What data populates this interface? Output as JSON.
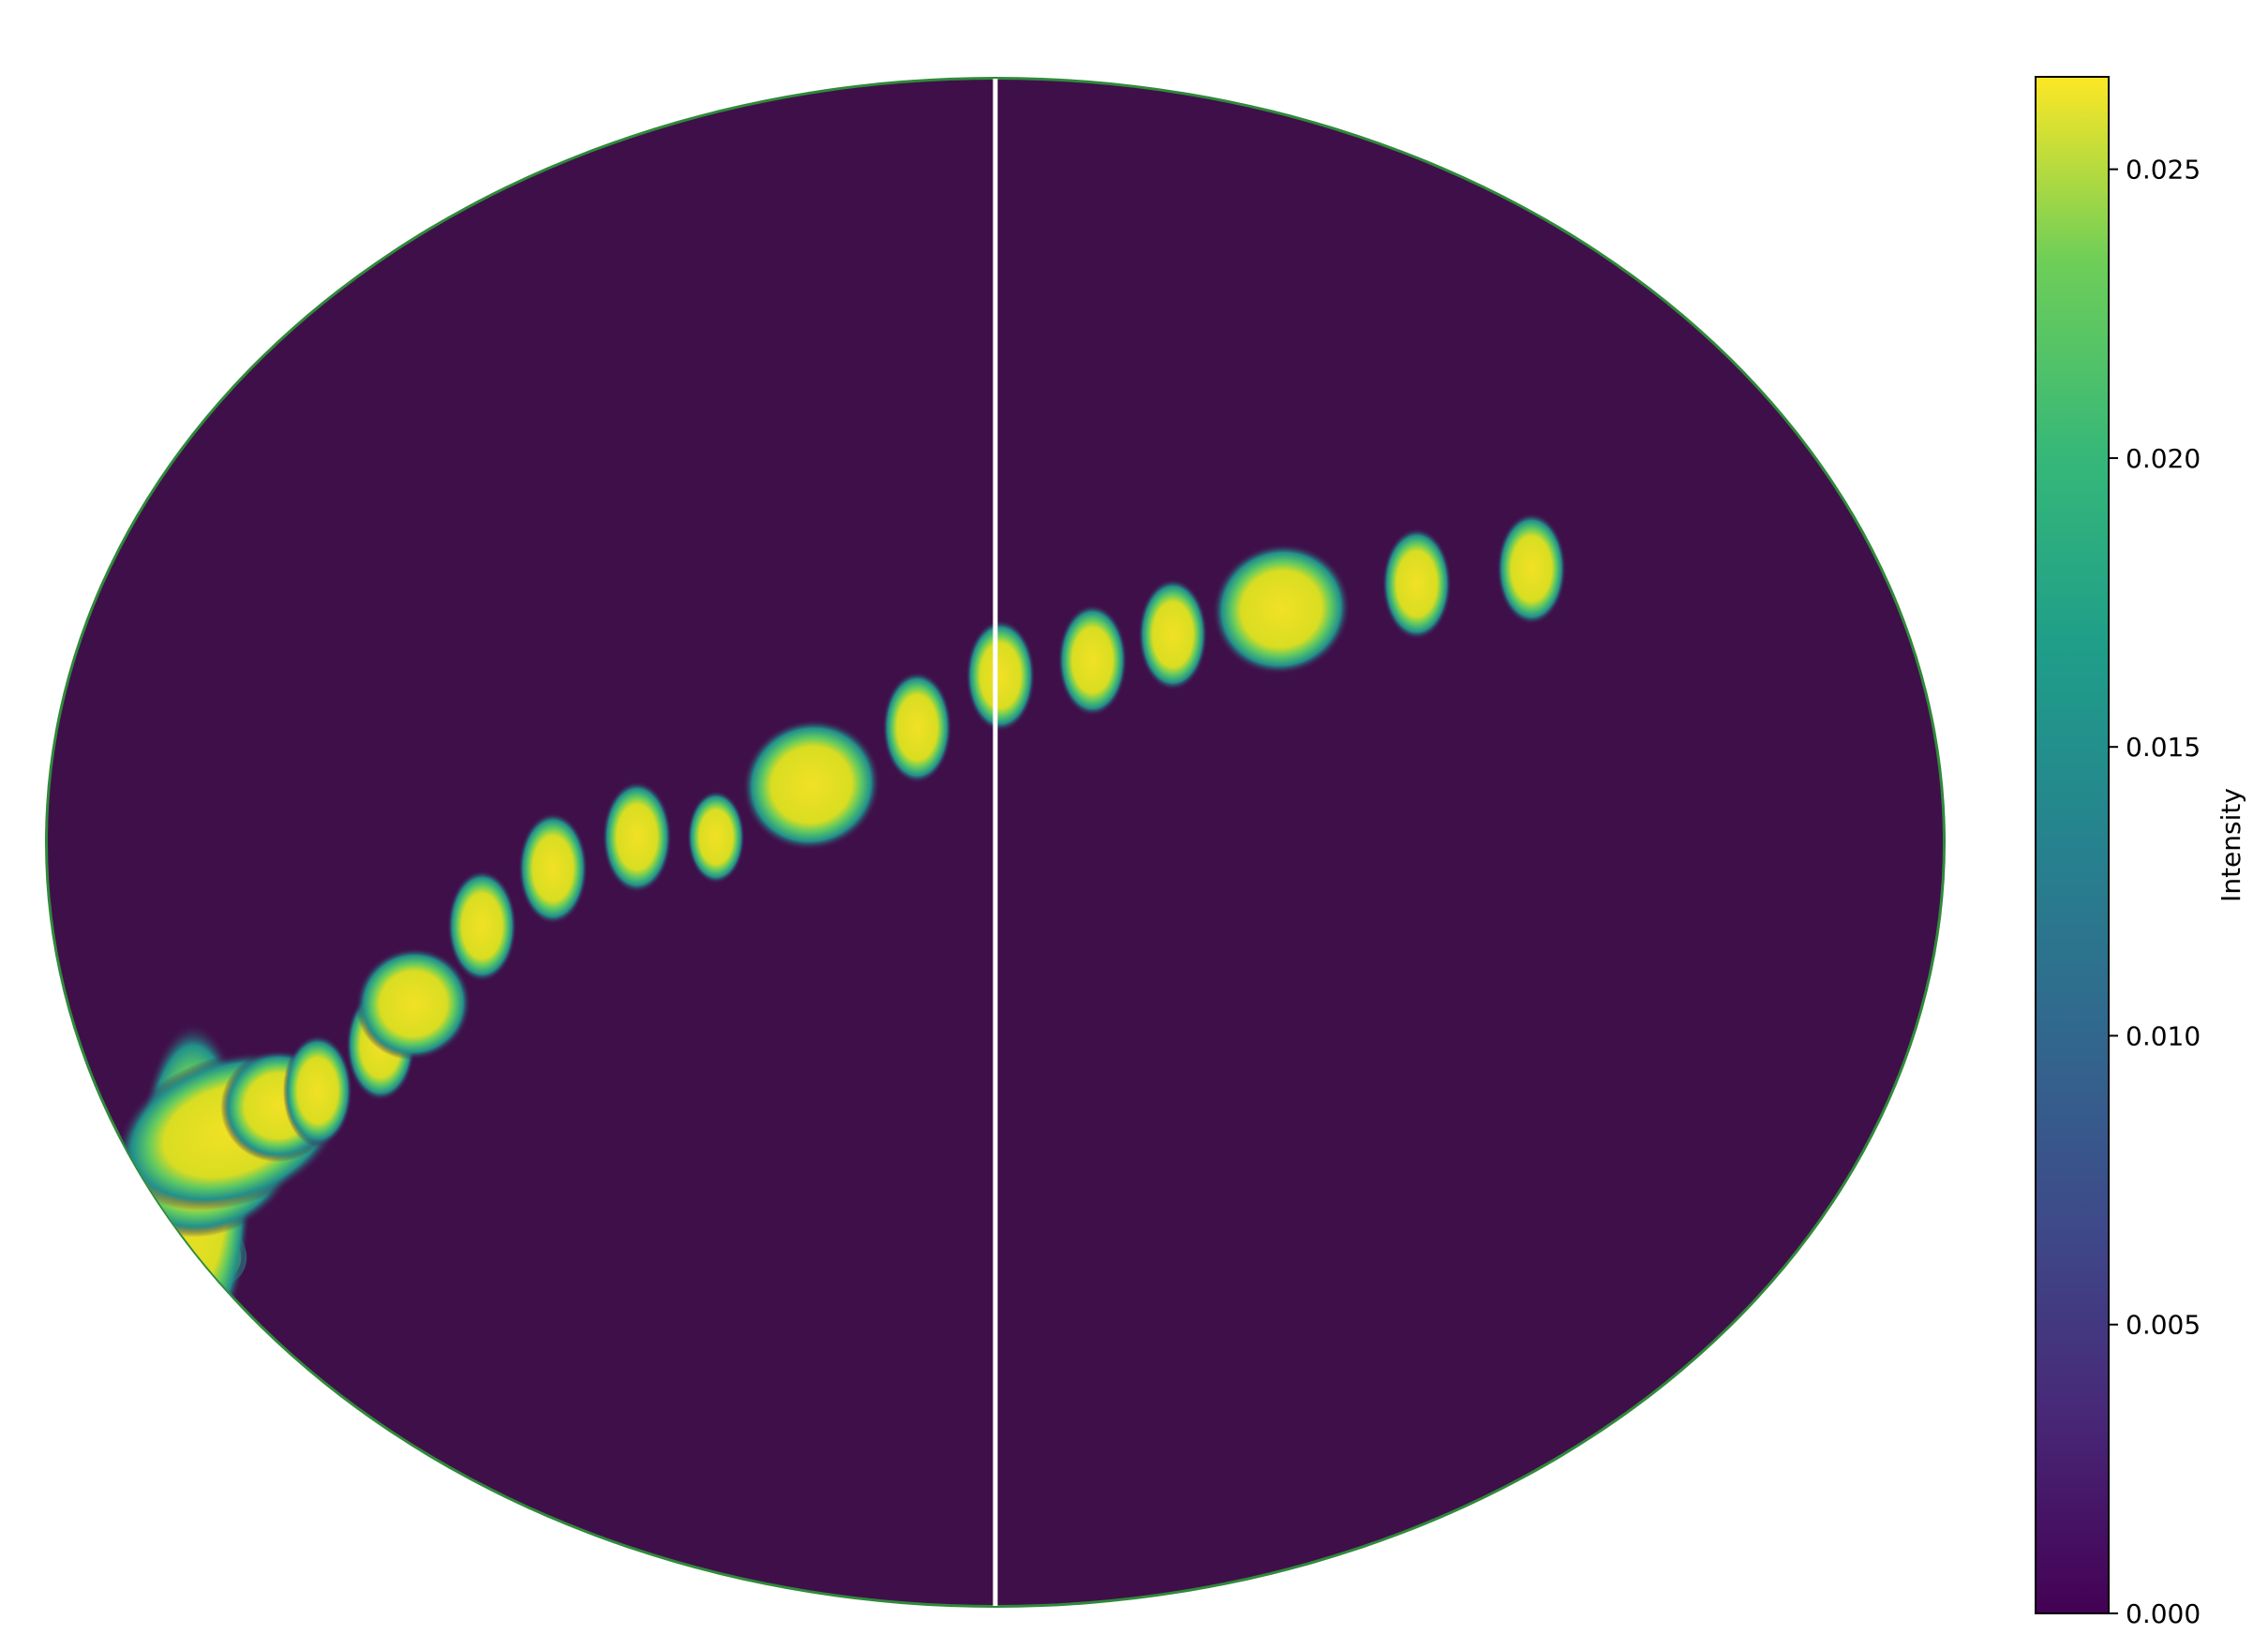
{
  "chart_data": {
    "type": "heatmap",
    "projection": "mollweide",
    "description_shape": "all-sky map (ellipse) with bright blobs along a curved track",
    "colormap": "viridis",
    "colors": {
      "background": "#3f0f4a",
      "high": "#f7e625",
      "meridian_line": "#ffffff"
    },
    "colorbar": {
      "label": "Intensity",
      "vmin": 0.0,
      "vmax": 0.0266,
      "ticks": [
        {
          "value": 0.0,
          "label": "0.000"
        },
        {
          "value": 0.005,
          "label": "0.005"
        },
        {
          "value": 0.01,
          "label": "0.010"
        },
        {
          "value": 0.015,
          "label": "0.015"
        },
        {
          "value": 0.02,
          "label": "0.020"
        },
        {
          "value": 0.025,
          "label": "0.025"
        }
      ]
    },
    "sources": [
      {
        "lon": -171,
        "lat": -34,
        "rx": 5,
        "ry": 9,
        "intensity": 0.0266
      },
      {
        "lon": -165,
        "lat": -31,
        "rx": 8,
        "ry": 4,
        "intensity": 0.0266
      },
      {
        "lon": -157,
        "lat": -28,
        "rx": 10,
        "ry": 4,
        "intensity": 0.0266
      },
      {
        "lon": -145,
        "lat": -25.5,
        "rx": 5,
        "ry": 3,
        "intensity": 0.0266
      },
      {
        "lon": -136,
        "lat": -24,
        "rx": 3,
        "ry": 3,
        "intensity": 0.0266
      },
      {
        "lon": -121,
        "lat": -19.5,
        "rx": 3,
        "ry": 3,
        "intensity": 0.0266
      },
      {
        "lon": -113,
        "lat": -15.5,
        "rx": 5,
        "ry": 3,
        "intensity": 0.0266
      },
      {
        "lon": -98,
        "lat": -8,
        "rx": 3,
        "ry": 3,
        "intensity": 0.0266
      },
      {
        "lon": -84,
        "lat": -2.5,
        "rx": 3,
        "ry": 3,
        "intensity": 0.0266
      },
      {
        "lon": -68,
        "lat": 0.5,
        "rx": 3,
        "ry": 3,
        "intensity": 0.0266
      },
      {
        "lon": -53,
        "lat": 0.5,
        "rx": 2.5,
        "ry": 2.5,
        "intensity": 0.0266
      },
      {
        "lon": -35,
        "lat": 5.5,
        "rx": 6,
        "ry": 3.5,
        "intensity": 0.0266
      },
      {
        "lon": -15,
        "lat": 11,
        "rx": 3,
        "ry": 3,
        "intensity": 0.0266
      },
      {
        "lon": 1,
        "lat": 16,
        "rx": 3,
        "ry": 3,
        "intensity": 0.0266
      },
      {
        "lon": 19,
        "lat": 17.5,
        "rx": 3,
        "ry": 3,
        "intensity": 0.0266
      },
      {
        "lon": 35,
        "lat": 20,
        "rx": 3,
        "ry": 3,
        "intensity": 0.0266
      },
      {
        "lon": 57,
        "lat": 22.5,
        "rx": 6,
        "ry": 3.5,
        "intensity": 0.0266
      },
      {
        "lon": 85,
        "lat": 25,
        "rx": 3,
        "ry": 3,
        "intensity": 0.0266
      },
      {
        "lon": 109,
        "lat": 26.5,
        "rx": 3,
        "ry": 3,
        "intensity": 0.0266
      }
    ],
    "track": [
      {
        "lon": -176,
        "lat": -41
      },
      {
        "lon": -171,
        "lat": -34
      },
      {
        "lon": -165,
        "lat": -31
      },
      {
        "lon": -157,
        "lat": -28
      },
      {
        "lon": -145,
        "lat": -25.5
      }
    ],
    "meridian_lon": 0,
    "grid": false,
    "legend": "colorbar-right"
  }
}
